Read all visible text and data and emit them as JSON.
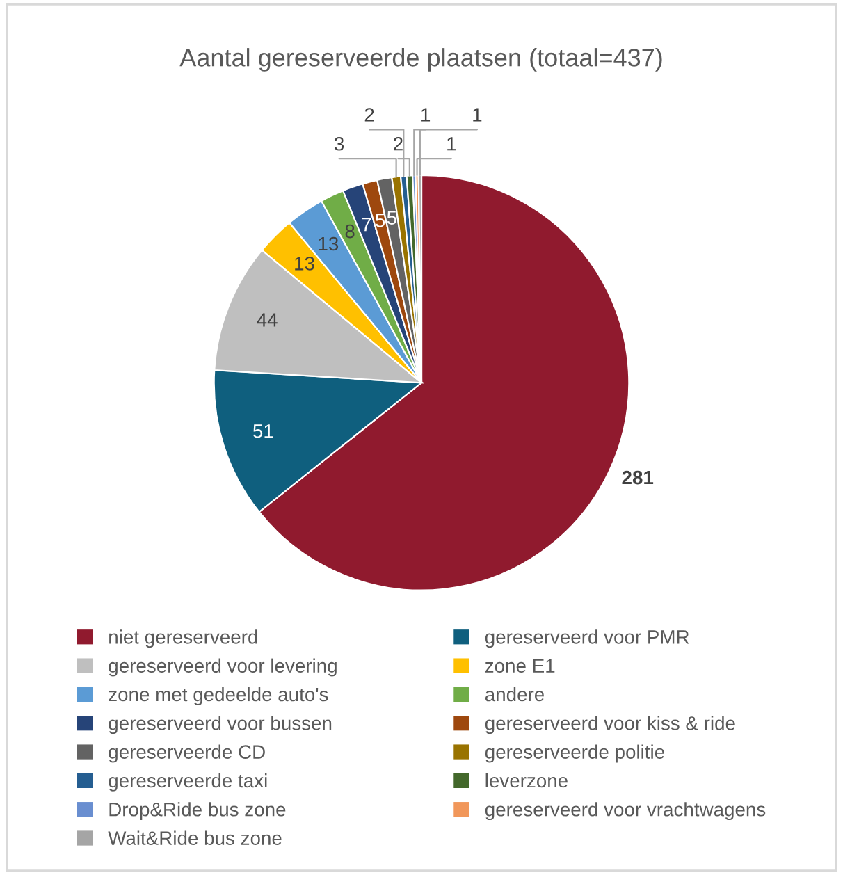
{
  "chart_data": {
    "type": "pie",
    "title": "Aantal gereserveerde plaatsen (totaal=437)",
    "categories": [
      "niet gereserveerd",
      "gereserveerd voor PMR",
      "gereserveerd voor levering",
      "zone E1",
      "zone met gedeelde auto's",
      "andere",
      "gereserveerd voor bussen",
      "gereserveerd voor kiss & ride",
      "gereserveerde CD",
      "gereserveerde politie",
      "gereserveerde taxi",
      "leverzone",
      "Drop&Ride bus zone",
      "gereserveerd voor vrachtwagens",
      "Wait&Ride bus zone"
    ],
    "values": [
      281,
      51,
      44,
      13,
      13,
      8,
      7,
      5,
      5,
      3,
      2,
      2,
      1,
      1,
      1
    ],
    "colors": [
      "#901a2e",
      "#0f5f7e",
      "#bfbfbf",
      "#ffc000",
      "#5b9bd5",
      "#70ad47",
      "#264478",
      "#9e480e",
      "#636363",
      "#997300",
      "#255e91",
      "#43682b",
      "#698ed0",
      "#f1975a",
      "#a5a5a5"
    ],
    "data_labels": true,
    "legend": "bottom"
  }
}
